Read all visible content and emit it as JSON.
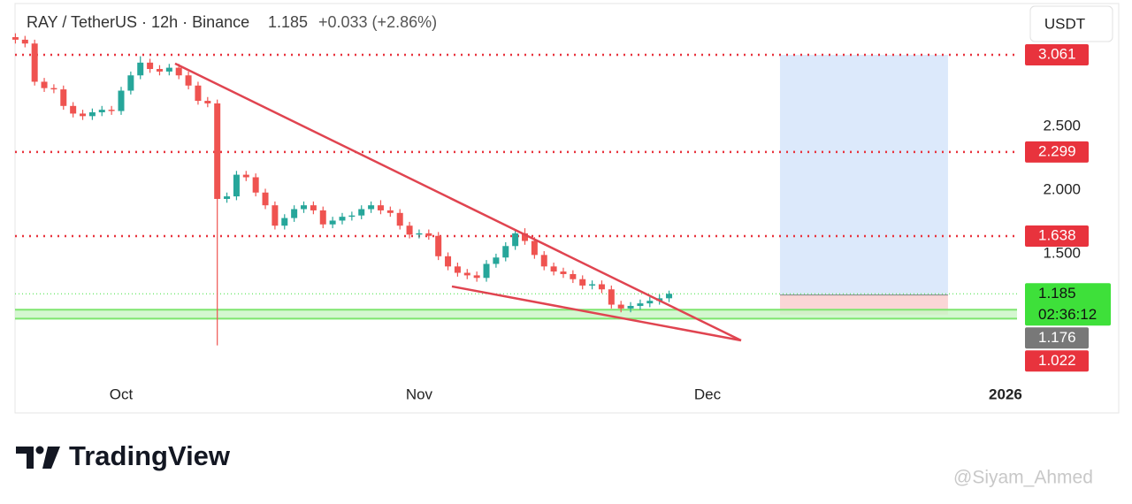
{
  "header": {
    "symbol": "RAY / TetherUS · 12h · Binance",
    "last": 1.185,
    "change": "+0.033 (+2.86%)"
  },
  "currency_button": "USDT",
  "chart_data": {
    "type": "candlestick",
    "x": [
      -11,
      -10,
      -9,
      -8,
      -7,
      -6,
      -5,
      -4,
      -3,
      -2,
      -1,
      0,
      1,
      2,
      3,
      4,
      5,
      6,
      7,
      8,
      9,
      10,
      11,
      12,
      13,
      14,
      15,
      16,
      17,
      18,
      19,
      20,
      21,
      22,
      23,
      24,
      25,
      26,
      27,
      28,
      29,
      30,
      31,
      32,
      33,
      34,
      35,
      36,
      37,
      38,
      39,
      40,
      41,
      42,
      43,
      44,
      45,
      46,
      47,
      48,
      49,
      50,
      51,
      52,
      53,
      54,
      55,
      56,
      57
    ],
    "open": [
      3.2,
      3.18,
      3.15,
      2.85,
      2.8,
      2.79,
      2.66,
      2.6,
      2.58,
      2.61,
      2.63,
      2.62,
      2.78,
      2.9,
      3.0,
      2.95,
      2.93,
      2.96,
      2.9,
      2.82,
      2.7,
      2.68,
      1.93,
      1.95,
      2.12,
      2.1,
      1.98,
      1.88,
      1.72,
      1.78,
      1.85,
      1.88,
      1.84,
      1.73,
      1.76,
      1.79,
      1.8,
      1.85,
      1.88,
      1.84,
      1.82,
      1.72,
      1.65,
      1.66,
      1.64,
      1.48,
      1.4,
      1.35,
      1.33,
      1.31,
      1.42,
      1.47,
      1.56,
      1.66,
      1.6,
      1.49,
      1.4,
      1.36,
      1.34,
      1.3,
      1.25,
      1.26,
      1.22,
      1.1,
      1.07,
      1.09,
      1.11,
      1.13,
      1.15
    ],
    "high": [
      3.23,
      3.21,
      3.18,
      2.88,
      2.83,
      2.82,
      2.69,
      2.63,
      2.64,
      2.66,
      2.66,
      2.81,
      2.93,
      3.05,
      3.03,
      2.98,
      2.99,
      2.99,
      2.93,
      2.85,
      2.73,
      2.71,
      1.98,
      2.15,
      2.15,
      2.13,
      2.01,
      1.91,
      1.81,
      1.88,
      1.91,
      1.91,
      1.87,
      1.79,
      1.82,
      1.83,
      1.88,
      1.91,
      1.92,
      1.87,
      1.85,
      1.75,
      1.69,
      1.69,
      1.67,
      1.51,
      1.43,
      1.38,
      1.36,
      1.45,
      1.5,
      1.59,
      1.69,
      1.7,
      1.63,
      1.52,
      1.43,
      1.39,
      1.37,
      1.33,
      1.29,
      1.29,
      1.25,
      1.13,
      1.12,
      1.14,
      1.16,
      1.18,
      1.21
    ],
    "low": [
      3.15,
      3.12,
      2.82,
      2.77,
      2.76,
      2.63,
      2.57,
      2.55,
      2.55,
      2.58,
      2.59,
      2.59,
      2.75,
      2.87,
      2.92,
      2.9,
      2.9,
      2.87,
      2.79,
      2.67,
      2.65,
      0.78,
      1.9,
      1.92,
      2.07,
      1.95,
      1.85,
      1.69,
      1.69,
      1.75,
      1.82,
      1.81,
      1.7,
      1.7,
      1.73,
      1.76,
      1.77,
      1.82,
      1.81,
      1.79,
      1.69,
      1.62,
      1.62,
      1.61,
      1.45,
      1.37,
      1.32,
      1.3,
      1.28,
      1.28,
      1.39,
      1.44,
      1.53,
      1.57,
      1.46,
      1.37,
      1.33,
      1.31,
      1.27,
      1.22,
      1.22,
      1.19,
      1.07,
      1.04,
      1.04,
      1.06,
      1.08,
      1.1,
      1.12
    ],
    "close": [
      3.18,
      3.15,
      2.85,
      2.8,
      2.79,
      2.66,
      2.6,
      2.58,
      2.61,
      2.63,
      2.62,
      2.78,
      2.9,
      3.0,
      2.95,
      2.93,
      2.96,
      2.9,
      2.82,
      2.7,
      2.68,
      1.93,
      1.95,
      2.12,
      2.1,
      1.98,
      1.88,
      1.72,
      1.78,
      1.85,
      1.88,
      1.84,
      1.73,
      1.76,
      1.79,
      1.8,
      1.85,
      1.88,
      1.84,
      1.82,
      1.72,
      1.65,
      1.66,
      1.64,
      1.48,
      1.4,
      1.35,
      1.33,
      1.31,
      1.42,
      1.47,
      1.56,
      1.66,
      1.6,
      1.49,
      1.4,
      1.36,
      1.34,
      1.3,
      1.25,
      1.26,
      1.22,
      1.1,
      1.07,
      1.09,
      1.11,
      1.13,
      1.15,
      1.185
    ],
    "up_color": "#26a69a",
    "down_color": "#ef5350",
    "xlim": [
      -11.04,
      93.2
    ],
    "xticks": [
      {
        "value": 0,
        "label": "Oct"
      },
      {
        "value": 31,
        "label": "Nov"
      },
      {
        "value": 61,
        "label": "Dec"
      },
      {
        "value": 92,
        "label": "2026"
      }
    ],
    "ylim": [
      0.479,
      3.214
    ],
    "yticks": [
      {
        "value": 1.5,
        "label": "1.500"
      },
      {
        "value": 2,
        "label": "2.000"
      },
      {
        "value": 2.5,
        "label": "2.500"
      }
    ],
    "levels": [
      {
        "value": 3.061,
        "color": "#e8333d"
      },
      {
        "value": 2.299,
        "color": "#e8333d"
      },
      {
        "value": 1.638,
        "color": "#e8333d"
      }
    ],
    "support_zone": [
      0.99,
      1.06
    ],
    "trendlines": [
      {
        "x": [
          5.61,
          64.49
        ],
        "y": [
          2.993,
          0.819
        ],
        "color": "#e04450"
      },
      {
        "x": [
          34.41,
          64.49
        ],
        "y": [
          1.243,
          0.819
        ],
        "color": "#e04450"
      }
    ],
    "position": {
      "x": [
        68.54,
        86.02
      ],
      "entry": 1.176,
      "target": 3.061,
      "stop": 1.022
    },
    "last_price": {
      "value": 1.185,
      "countdown": "02:36:12",
      "color": "#3ee03a"
    }
  },
  "brand": "TradingView",
  "watermark": "@Siyam_Ahmed"
}
